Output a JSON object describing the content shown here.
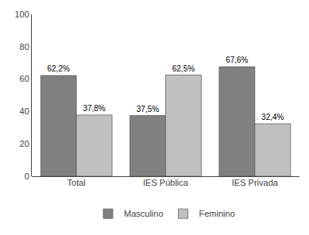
{
  "chart_data": {
    "type": "bar",
    "categories": [
      "Total",
      "IES Pública",
      "IES Privada"
    ],
    "series": [
      {
        "name": "Masculino",
        "color": "#808080",
        "values": [
          62.2,
          37.5,
          67.6
        ],
        "value_labels": [
          "62,2%",
          "37,5%",
          "67,6%"
        ]
      },
      {
        "name": "Feminino",
        "color": "#c0c0c0",
        "values": [
          37.8,
          62.5,
          32.4
        ],
        "value_labels": [
          "37,8%",
          "62,5%",
          "32,4%"
        ]
      }
    ],
    "ylim": [
      0,
      100
    ],
    "yticks": [
      0,
      20,
      40,
      60,
      80,
      100
    ],
    "grid": false,
    "legend": "bottom",
    "data_labels": true
  }
}
